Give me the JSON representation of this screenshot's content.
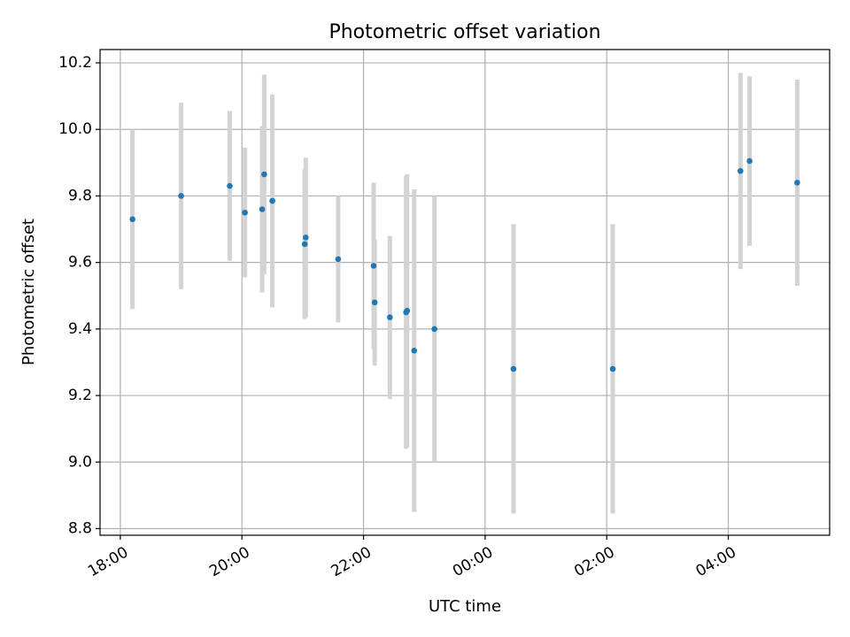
{
  "chart_data": {
    "type": "scatter",
    "title": "Photometric offset variation",
    "xlabel": "UTC time",
    "ylabel": "Photometric offset",
    "x_axis_type": "time",
    "xlim": [
      "17:40",
      "29:40"
    ],
    "ylim": [
      8.78,
      10.24
    ],
    "x_ticks": [
      {
        "value": "18:00",
        "label": "18:00"
      },
      {
        "value": "20:00",
        "label": "20:00"
      },
      {
        "value": "22:00",
        "label": "22:00"
      },
      {
        "value": "24:00",
        "label": "00:00"
      },
      {
        "value": "26:00",
        "label": "02:00"
      },
      {
        "value": "28:00",
        "label": "04:00"
      }
    ],
    "y_ticks": [
      8.8,
      9.0,
      9.2,
      9.4,
      9.6,
      9.8,
      10.0,
      10.2
    ],
    "y_tick_labels": [
      "8.8",
      "9.0",
      "9.2",
      "9.4",
      "9.6",
      "9.8",
      "10.0",
      "10.2"
    ],
    "grid": true,
    "marker_color": "#1f77b4",
    "errorbar_color": "#d3d3d3",
    "series": [
      {
        "points": [
          {
            "x": "18:12",
            "y": 9.73,
            "err": 0.27
          },
          {
            "x": "19:00",
            "y": 9.8,
            "err": 0.28
          },
          {
            "x": "19:48",
            "y": 9.83,
            "err": 0.225
          },
          {
            "x": "20:03",
            "y": 9.75,
            "err": 0.195
          },
          {
            "x": "20:20",
            "y": 9.76,
            "err": 0.25
          },
          {
            "x": "20:22",
            "y": 9.865,
            "err": 0.3
          },
          {
            "x": "20:30",
            "y": 9.785,
            "err": 0.32
          },
          {
            "x": "21:02",
            "y": 9.655,
            "err": 0.225
          },
          {
            "x": "21:03",
            "y": 9.675,
            "err": 0.24
          },
          {
            "x": "21:35",
            "y": 9.61,
            "err": 0.19
          },
          {
            "x": "22:10",
            "y": 9.59,
            "err": 0.25
          },
          {
            "x": "22:11",
            "y": 9.48,
            "err": 0.19
          },
          {
            "x": "22:26",
            "y": 9.435,
            "err": 0.245
          },
          {
            "x": "22:42",
            "y": 9.45,
            "err": 0.41
          },
          {
            "x": "22:43",
            "y": 9.455,
            "err": 0.41
          },
          {
            "x": "22:50",
            "y": 9.335,
            "err": 0.485
          },
          {
            "x": "23:10",
            "y": 9.4,
            "err": 0.4
          },
          {
            "x": "24:28",
            "y": 9.28,
            "err": 0.435
          },
          {
            "x": "26:06",
            "y": 9.28,
            "err": 0.435
          },
          {
            "x": "28:12",
            "y": 9.875,
            "err": 0.295
          },
          {
            "x": "28:21",
            "y": 9.905,
            "err": 0.255
          },
          {
            "x": "29:08",
            "y": 9.84,
            "err": 0.31
          }
        ]
      }
    ]
  }
}
